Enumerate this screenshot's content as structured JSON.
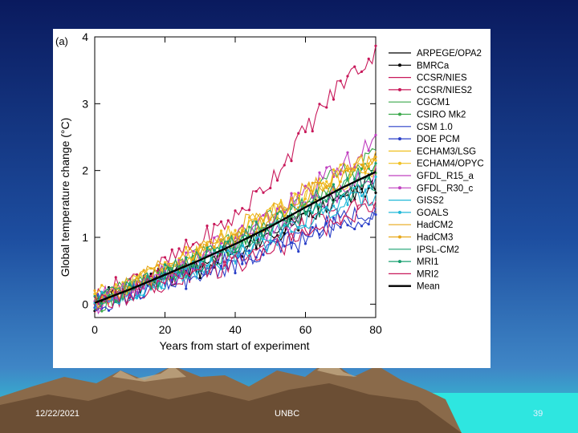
{
  "colors": {
    "sky_top": "#0a1a5e",
    "sky_mid": "#1d4ea0",
    "sky_low": "#3f86c6",
    "teal": "#2fd6d6",
    "mountain": "#8a6a4a"
  },
  "footer": {
    "date": "12/22/2021",
    "org": "UNBC",
    "page": "39"
  },
  "chart_data": {
    "type": "line",
    "panel_label": "(a)",
    "xlabel": "Years from start of experiment",
    "ylabel": "Global temperature change (°C)",
    "xlim": [
      0,
      80
    ],
    "ylim": [
      -0.2,
      4
    ],
    "xticks": [
      "0",
      "20",
      "40",
      "60",
      "80"
    ],
    "yticks": [
      "0",
      "1",
      "2",
      "3",
      "4"
    ],
    "x": [
      0,
      10,
      20,
      30,
      40,
      50,
      60,
      70,
      80
    ],
    "series": [
      {
        "name": "ARPEGE/OPA2",
        "color": "#000000",
        "marker": false,
        "values": [
          0.0,
          0.22,
          0.42,
          0.6,
          0.85,
          1.05,
          1.35,
          1.6,
          1.85
        ]
      },
      {
        "name": "BMRCa",
        "color": "#000000",
        "marker": true,
        "values": [
          0.05,
          0.2,
          0.38,
          0.55,
          0.8,
          1.0,
          1.25,
          1.55,
          1.75
        ]
      },
      {
        "name": "CCSR/NIES",
        "color": "#c8185a",
        "marker": false,
        "values": [
          -0.05,
          0.15,
          0.35,
          0.5,
          0.75,
          0.95,
          1.15,
          1.35,
          1.55
        ]
      },
      {
        "name": "CCSR/NIES2",
        "color": "#c8185a",
        "marker": true,
        "values": [
          0.1,
          0.35,
          0.6,
          0.95,
          1.3,
          1.85,
          2.6,
          3.3,
          3.75
        ]
      },
      {
        "name": "CGCM1",
        "color": "#3aa84a",
        "marker": false,
        "values": [
          0.05,
          0.25,
          0.45,
          0.7,
          0.95,
          1.3,
          1.6,
          1.95,
          2.2
        ]
      },
      {
        "name": "CSIRO Mk2",
        "color": "#3aa84a",
        "marker": true,
        "values": [
          0.0,
          0.22,
          0.45,
          0.65,
          0.9,
          1.15,
          1.45,
          1.8,
          2.1
        ]
      },
      {
        "name": "CSM 1.0",
        "color": "#2a3fc8",
        "marker": false,
        "values": [
          0.02,
          0.18,
          0.35,
          0.5,
          0.68,
          0.85,
          1.05,
          1.25,
          1.45
        ]
      },
      {
        "name": "DOE PCM",
        "color": "#2a3fc8",
        "marker": true,
        "values": [
          0.0,
          0.15,
          0.3,
          0.45,
          0.62,
          0.8,
          0.98,
          1.2,
          1.38
        ]
      },
      {
        "name": "ECHAM3/LSG",
        "color": "#f0c020",
        "marker": false,
        "values": [
          0.05,
          0.25,
          0.5,
          0.75,
          1.0,
          1.3,
          1.6,
          1.85,
          2.05
        ]
      },
      {
        "name": "ECHAM4/OPYC",
        "color": "#f0c020",
        "marker": true,
        "values": [
          0.08,
          0.3,
          0.55,
          0.8,
          1.05,
          1.35,
          1.65,
          1.95,
          2.15
        ]
      },
      {
        "name": "GFDL_R15_a",
        "color": "#c040c0",
        "marker": false,
        "values": [
          0.0,
          0.2,
          0.4,
          0.62,
          0.85,
          1.1,
          1.4,
          1.7,
          1.95
        ]
      },
      {
        "name": "GFDL_R30_c",
        "color": "#c040c0",
        "marker": true,
        "values": [
          0.05,
          0.25,
          0.5,
          0.75,
          1.0,
          1.3,
          1.65,
          2.05,
          2.4
        ]
      },
      {
        "name": "GISS2",
        "color": "#20b8d8",
        "marker": false,
        "values": [
          0.0,
          0.18,
          0.38,
          0.55,
          0.75,
          0.95,
          1.2,
          1.45,
          1.65
        ]
      },
      {
        "name": "GOALS",
        "color": "#20b8d8",
        "marker": true,
        "values": [
          0.02,
          0.2,
          0.4,
          0.6,
          0.82,
          1.05,
          1.3,
          1.55,
          1.8
        ]
      },
      {
        "name": "HadCM2",
        "color": "#e8a818",
        "marker": false,
        "values": [
          0.05,
          0.3,
          0.55,
          0.8,
          1.1,
          1.4,
          1.7,
          1.95,
          2.2
        ]
      },
      {
        "name": "HadCM3",
        "color": "#e8a818",
        "marker": true,
        "values": [
          0.05,
          0.28,
          0.5,
          0.75,
          1.0,
          1.3,
          1.6,
          1.9,
          2.1
        ]
      },
      {
        "name": "IPSL-CM2",
        "color": "#18a070",
        "marker": false,
        "values": [
          0.0,
          0.2,
          0.42,
          0.62,
          0.85,
          1.08,
          1.35,
          1.6,
          1.85
        ]
      },
      {
        "name": "MRI1",
        "color": "#18a070",
        "marker": true,
        "values": [
          0.03,
          0.22,
          0.45,
          0.68,
          0.92,
          1.2,
          1.5,
          1.78,
          2.0
        ]
      },
      {
        "name": "MRI2",
        "color": "#c8185a",
        "marker": false,
        "values": [
          0.0,
          0.15,
          0.3,
          0.45,
          0.6,
          0.8,
          1.0,
          1.25,
          1.5
        ]
      },
      {
        "name": "Mean",
        "color": "#000000",
        "marker": false,
        "thick": true,
        "values": [
          0.02,
          0.22,
          0.44,
          0.66,
          0.9,
          1.16,
          1.45,
          1.73,
          1.98
        ]
      }
    ]
  }
}
